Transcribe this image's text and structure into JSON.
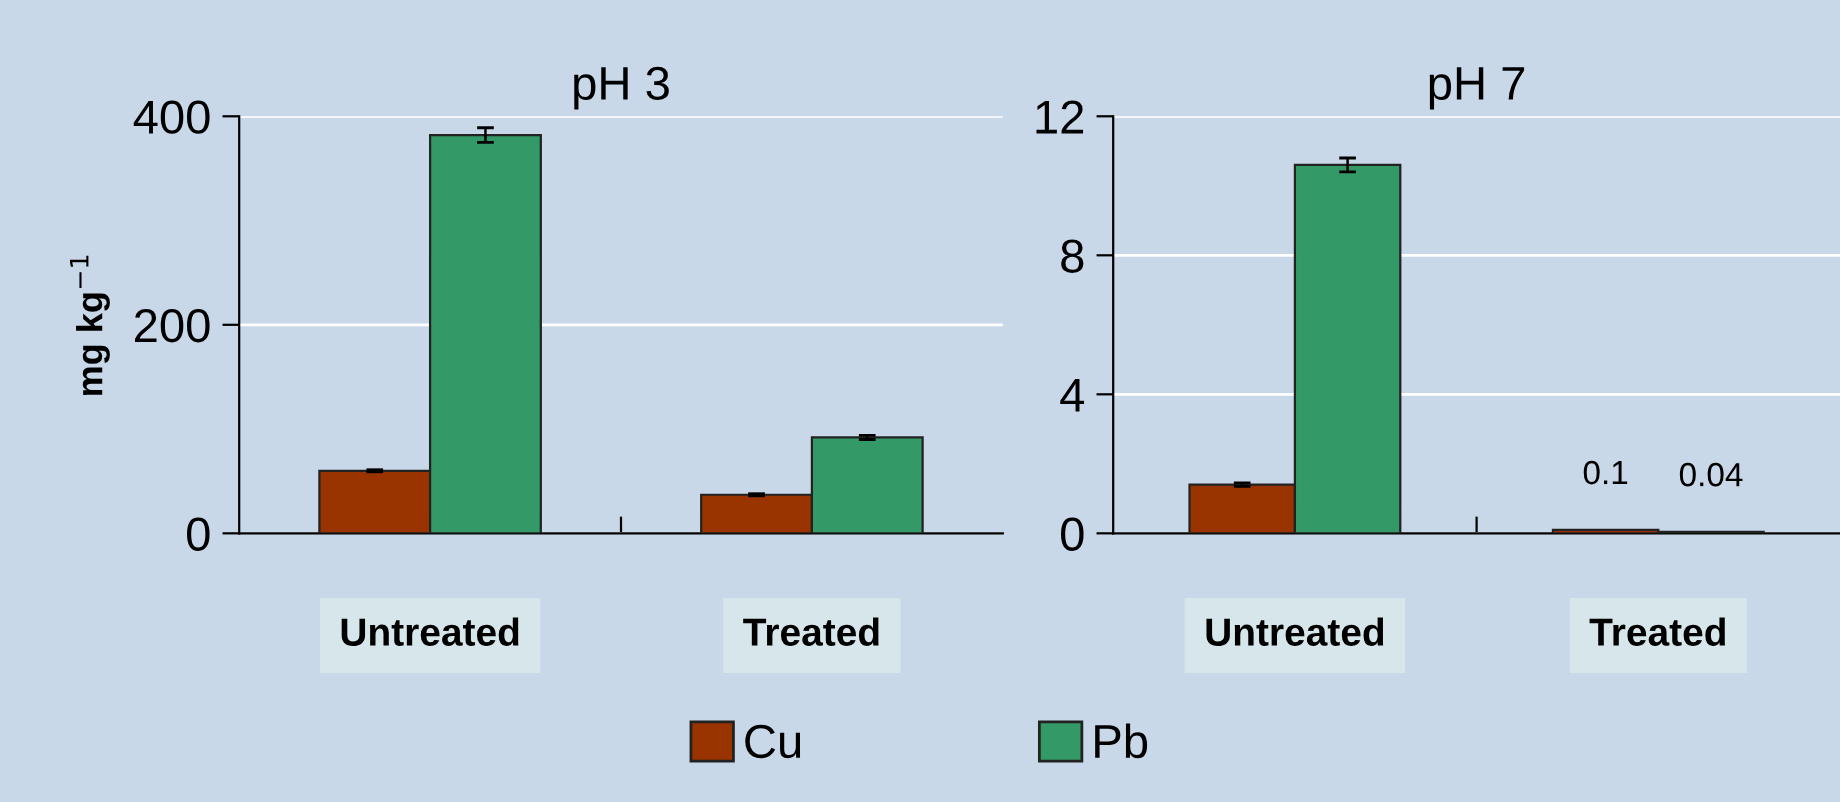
{
  "chart_data": [
    {
      "type": "bar",
      "title": "pH 3",
      "ylabel": "mg kg$^{−1}$",
      "categories": [
        "Untreated",
        "Treated"
      ],
      "ylim": [
        0,
        400
      ],
      "yticks": [
        0,
        200,
        400
      ],
      "grid": "y",
      "legend": "bottom",
      "series": [
        {
          "name": "Cu",
          "color": "#993300",
          "values": [
            60,
            37
          ],
          "errors": [
            1,
            1
          ]
        },
        {
          "name": "Pb",
          "color": "#339966",
          "values": [
            382,
            92
          ],
          "errors": [
            7,
            2
          ]
        }
      ]
    },
    {
      "type": "bar",
      "title": "pH 7",
      "categories": [
        "Untreated",
        "Treated"
      ],
      "ylim": [
        0,
        12
      ],
      "yticks": [
        0,
        4,
        8,
        12
      ],
      "grid": "y",
      "series": [
        {
          "color": "#993300",
          "values": [
            1.4,
            0.1
          ],
          "errors": [
            0.05,
            null
          ],
          "value_labels": [
            null,
            "0.1"
          ]
        },
        {
          "color": "#339966",
          "values": [
            10.6,
            0.04
          ],
          "errors": [
            0.2,
            null
          ],
          "value_labels": [
            null,
            "0.04"
          ]
        }
      ]
    }
  ]
}
